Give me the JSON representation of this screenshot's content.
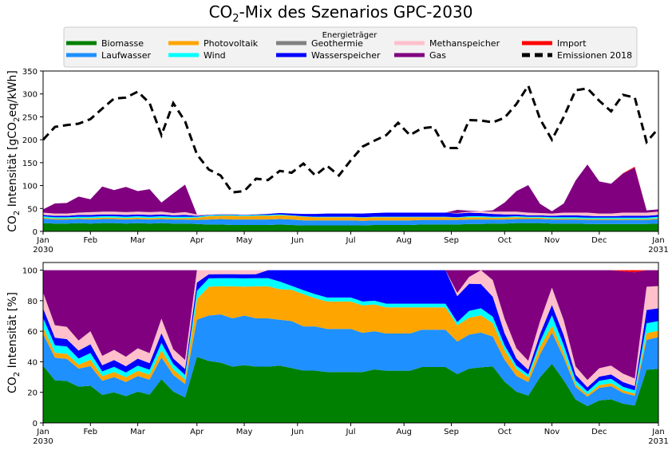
{
  "title_main": "CO",
  "title_sub": "2",
  "title_rest": "-Mix des Szenarios GPC-2030",
  "legend": {
    "title": "Energieträger",
    "items": [
      {
        "label": "Biomasse",
        "color": "#008000",
        "style": "solid"
      },
      {
        "label": "Laufwasser",
        "color": "#1e90ff",
        "style": "solid"
      },
      {
        "label": "Photovoltaik",
        "color": "#ffa500",
        "style": "solid"
      },
      {
        "label": "Wind",
        "color": "#00ffff",
        "style": "solid"
      },
      {
        "label": "Geothermie",
        "color": "#808080",
        "style": "solid"
      },
      {
        "label": "Wasserspeicher",
        "color": "#0000ff",
        "style": "solid"
      },
      {
        "label": "Methanspeicher",
        "color": "#ffc0cb",
        "style": "solid"
      },
      {
        "label": "Gas",
        "color": "#800080",
        "style": "solid"
      },
      {
        "label": "Import",
        "color": "#ff0000",
        "style": "solid"
      },
      {
        "label": "Emissionen 2018",
        "color": "#000000",
        "style": "dashed"
      }
    ]
  },
  "chart_data": [
    {
      "type": "area",
      "stacked": true,
      "ylabel_pre": "CO",
      "ylabel_sub": "2",
      "ylabel_mid": " Intensität [gCO",
      "ylabel_sub2": "2",
      "ylabel_post": "eq/kWh]",
      "ylim": [
        0,
        350
      ],
      "yticks": [
        0,
        50,
        100,
        150,
        200,
        250,
        300,
        350
      ],
      "xlim": [
        0,
        52
      ],
      "xticks": [
        {
          "pos": 0,
          "label": "Jan",
          "label2": "2030"
        },
        {
          "pos": 4,
          "label": "Feb"
        },
        {
          "pos": 8,
          "label": "Mar"
        },
        {
          "pos": 13,
          "label": "Apr"
        },
        {
          "pos": 17,
          "label": "May"
        },
        {
          "pos": 21.5,
          "label": "Jun"
        },
        {
          "pos": 26,
          "label": "Jul"
        },
        {
          "pos": 30.5,
          "label": "Aug"
        },
        {
          "pos": 34.5,
          "label": "Sep"
        },
        {
          "pos": 39,
          "label": "Oct"
        },
        {
          "pos": 43,
          "label": "Nov"
        },
        {
          "pos": 47,
          "label": "Dec"
        },
        {
          "pos": 52,
          "label": "Jan",
          "label2": "2031"
        }
      ],
      "x": [
        0,
        1,
        2,
        3,
        4,
        5,
        6,
        7,
        8,
        9,
        10,
        11,
        12,
        13,
        14,
        15,
        16,
        17,
        18,
        19,
        20,
        21,
        22,
        23,
        24,
        25,
        26,
        27,
        28,
        29,
        30,
        31,
        32,
        33,
        34,
        35,
        36,
        37,
        38,
        39,
        40,
        41,
        42,
        43,
        44,
        45,
        46,
        47,
        48,
        49,
        50,
        51,
        52
      ],
      "series": [
        {
          "name": "Biomasse",
          "color": "#008000",
          "values": [
            18,
            17,
            17,
            18,
            17,
            18,
            18,
            17,
            18,
            17,
            18,
            17,
            17,
            16,
            15,
            15,
            14,
            14,
            14,
            14,
            15,
            14,
            13,
            13,
            13,
            13,
            13,
            13,
            14,
            14,
            14,
            14,
            15,
            15,
            15,
            15,
            16,
            16,
            17,
            17,
            18,
            18,
            18,
            17,
            17,
            17,
            16,
            16,
            16,
            16,
            16,
            16,
            17
          ]
        },
        {
          "name": "Laufwasser",
          "color": "#1e90ff",
          "values": [
            10,
            9,
            9,
            9,
            9,
            9,
            9,
            9,
            9,
            9,
            9,
            9,
            9,
            9,
            11,
            12,
            12,
            12,
            12,
            12,
            12,
            12,
            11,
            11,
            11,
            11,
            11,
            10,
            10,
            10,
            10,
            10,
            10,
            10,
            10,
            10,
            10,
            10,
            9,
            9,
            9,
            9,
            9,
            9,
            9,
            9,
            9,
            9,
            9,
            9,
            9,
            9,
            10
          ]
        },
        {
          "name": "Photovoltaik",
          "color": "#ffa500",
          "values": [
            2,
            2,
            2,
            2,
            3,
            3,
            3,
            3,
            3,
            3,
            3,
            3,
            3,
            5,
            7,
            7,
            8,
            7,
            8,
            8,
            8,
            8,
            8,
            7,
            7,
            7,
            7,
            7,
            7,
            7,
            7,
            7,
            6,
            6,
            6,
            5,
            5,
            5,
            4,
            4,
            4,
            3,
            3,
            2,
            2,
            2,
            2,
            2,
            2,
            2,
            2,
            2,
            2
          ]
        },
        {
          "name": "Wind",
          "color": "#00ffff",
          "values": [
            3,
            3,
            3,
            3,
            3,
            3,
            3,
            3,
            3,
            3,
            3,
            3,
            3,
            2,
            2,
            2,
            2,
            2,
            2,
            2,
            2,
            1,
            1,
            1,
            1,
            1,
            1,
            1,
            1,
            1,
            1,
            1,
            1,
            1,
            1,
            1,
            2,
            2,
            2,
            2,
            2,
            2,
            2,
            3,
            3,
            3,
            3,
            3,
            3,
            3,
            3,
            3,
            3
          ]
        },
        {
          "name": "Geothermie",
          "color": "#808080",
          "values": [
            0,
            0,
            0,
            0,
            0,
            0,
            0,
            0,
            0,
            0,
            0,
            0,
            0,
            0,
            0,
            0,
            0,
            0,
            0,
            0,
            0,
            0,
            0,
            0,
            0,
            0,
            0,
            0,
            0,
            0,
            0,
            0,
            0,
            0,
            0,
            0,
            0,
            0,
            0,
            0,
            0,
            0,
            0,
            0,
            0,
            0,
            0,
            0,
            0,
            0,
            0,
            0,
            0
          ]
        },
        {
          "name": "Wasserspeicher",
          "color": "#0000ff",
          "values": [
            3,
            3,
            3,
            4,
            4,
            4,
            4,
            4,
            4,
            4,
            4,
            3,
            4,
            2,
            1,
            1,
            1,
            1,
            1,
            2,
            3,
            4,
            5,
            6,
            7,
            7,
            7,
            8,
            8,
            9,
            9,
            9,
            9,
            9,
            9,
            8,
            8,
            7,
            6,
            5,
            4,
            3,
            3,
            3,
            4,
            4,
            4,
            3,
            3,
            4,
            4,
            4,
            4
          ]
        },
        {
          "name": "Methanspeicher",
          "color": "#ffc0cb",
          "values": [
            5,
            5,
            5,
            5,
            6,
            6,
            6,
            6,
            6,
            6,
            6,
            5,
            6,
            3,
            1,
            1,
            1,
            1,
            1,
            0,
            0,
            0,
            0,
            0,
            0,
            0,
            0,
            0,
            0,
            0,
            0,
            0,
            0,
            0,
            0,
            1,
            2,
            4,
            5,
            6,
            6,
            6,
            5,
            5,
            6,
            6,
            7,
            6,
            6,
            7,
            7,
            7,
            7
          ]
        },
        {
          "name": "Gas",
          "color": "#800080",
          "values": [
            7,
            22,
            23,
            35,
            28,
            55,
            47,
            55,
            45,
            50,
            20,
            43,
            60,
            0,
            0,
            0,
            0,
            0,
            0,
            0,
            0,
            0,
            0,
            0,
            0,
            0,
            0,
            0,
            0,
            0,
            0,
            0,
            0,
            0,
            0,
            7,
            2,
            0,
            3,
            20,
            45,
            60,
            20,
            5,
            20,
            70,
            105,
            70,
            65,
            85,
            98,
            5,
            5
          ]
        },
        {
          "name": "Import",
          "color": "#ff0000",
          "values": [
            0,
            0,
            0,
            0,
            0,
            0,
            0,
            0,
            0,
            0,
            0,
            0,
            0,
            0,
            0,
            0,
            0,
            0,
            0,
            0,
            0,
            0,
            0,
            0,
            0,
            0,
            0,
            0,
            0,
            0,
            0,
            0,
            0,
            0,
            0,
            0,
            0,
            0,
            0,
            0,
            0,
            0,
            0,
            0,
            0,
            0,
            0,
            0,
            0,
            1,
            2,
            0,
            0
          ]
        }
      ],
      "emissions": {
        "name": "Emissionen 2018",
        "color": "#000000",
        "values": [
          200,
          228,
          232,
          235,
          245,
          268,
          290,
          292,
          305,
          280,
          210,
          280,
          240,
          168,
          135,
          122,
          85,
          88,
          115,
          112,
          132,
          128,
          148,
          122,
          143,
          122,
          155,
          185,
          198,
          210,
          237,
          210,
          225,
          228,
          182,
          182,
          243,
          242,
          238,
          248,
          278,
          318,
          245,
          200,
          250,
          308,
          312,
          285,
          262,
          298,
          292,
          195,
          225
        ]
      }
    },
    {
      "type": "area",
      "stacked": true,
      "ylabel_pre": "CO",
      "ylabel_sub": "2",
      "ylabel_post": " Intensität [%]",
      "ylim": [
        0,
        105
      ],
      "yticks": [
        0,
        20,
        40,
        60,
        80,
        100
      ],
      "xlim": [
        0,
        52
      ],
      "note": "percentage share of each carrier per week",
      "series": [
        {
          "name": "Biomasse",
          "color": "#008000"
        },
        {
          "name": "Laufwasser",
          "color": "#1e90ff"
        },
        {
          "name": "Photovoltaik",
          "color": "#ffa500"
        },
        {
          "name": "Wind",
          "color": "#00ffff"
        },
        {
          "name": "Geothermie",
          "color": "#808080"
        },
        {
          "name": "Wasserspeicher",
          "color": "#0000ff"
        },
        {
          "name": "Methanspeicher",
          "color": "#ffc0cb"
        },
        {
          "name": "Gas",
          "color": "#800080"
        },
        {
          "name": "Import",
          "color": "#ff0000"
        }
      ]
    }
  ]
}
